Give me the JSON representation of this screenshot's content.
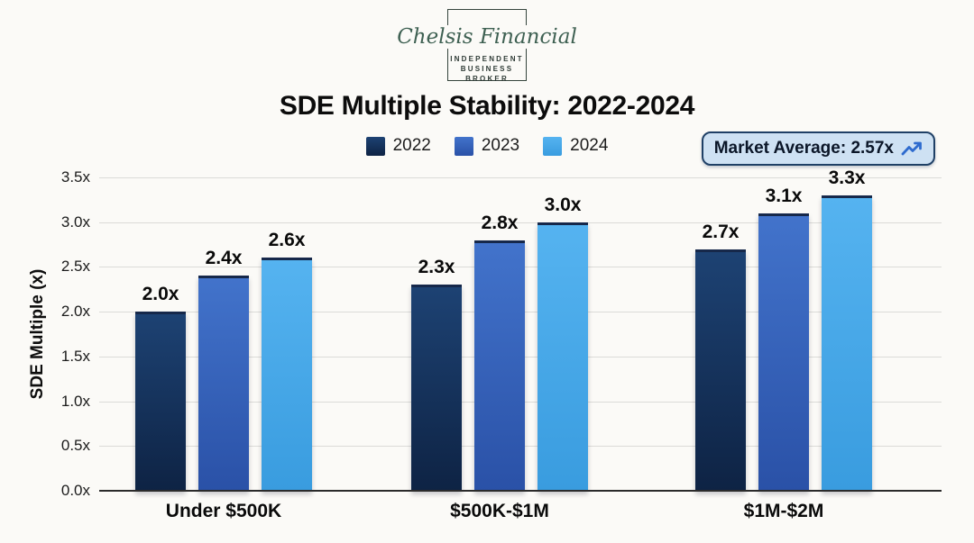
{
  "logo": {
    "company": "Chelsis Financial",
    "tagline_lines": [
      "INDEPENDENT",
      "BUSINESS",
      "BROKER"
    ]
  },
  "header": {
    "title": "SDE Multiple Stability: 2022-2024"
  },
  "badge": {
    "text": "Market Average: 2.57x",
    "icon": "trending-up-icon",
    "background": "#cee1f3",
    "border_color": "#1f4066",
    "icon_color": "#2e6bce"
  },
  "chart_data": {
    "type": "bar",
    "title": "SDE Multiple Stability: 2022-2024",
    "categories": [
      "Under $500K",
      "$500K-$1M",
      "$1M-$2M"
    ],
    "series": [
      {
        "name": "2022",
        "values": [
          2.0,
          2.3,
          2.7
        ],
        "labels": [
          "2.0x",
          "2.3x",
          "2.7x"
        ],
        "color": "#16335e",
        "color_light": "#1d4273",
        "color_dark": "#0e2344"
      },
      {
        "name": "2023",
        "values": [
          2.4,
          2.8,
          3.1
        ],
        "labels": [
          "2.4x",
          "2.8x",
          "3.1x"
        ],
        "color": "#3561ba",
        "color_light": "#4273cb",
        "color_dark": "#2a51a7"
      },
      {
        "name": "2024",
        "values": [
          2.6,
          3.0,
          3.3
        ],
        "labels": [
          "2.6x",
          "3.0x",
          "3.3x"
        ],
        "color": "#45a9ea",
        "color_light": "#55b3f0",
        "color_dark": "#399cdf"
      }
    ],
    "ylabel": "SDE Multiple (x)",
    "xlabel": "",
    "ylim": [
      0,
      3.5
    ],
    "yticks": [
      "0.0x",
      "0.5x",
      "1.0x",
      "1.5x",
      "2.0x",
      "2.5x",
      "3.0x",
      "3.5x"
    ],
    "grid": true,
    "legend_position": "top-center",
    "annotation": "Market Average: 2.57x"
  }
}
